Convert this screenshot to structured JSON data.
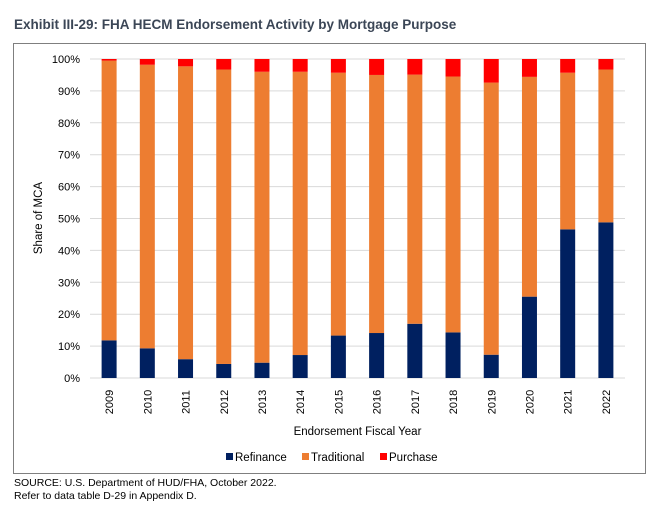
{
  "title": "Exhibit III-29: FHA HECM Endorsement Activity by Mortgage Purpose",
  "footer": {
    "source": "SOURCE: U.S. Department of HUD/FHA, October 2022.",
    "note": "Refer to data table D-29 in Appendix D."
  },
  "chart_data": {
    "type": "bar",
    "stacked": true,
    "xlabel": "Endorsement Fiscal Year",
    "ylabel": "Share of MCA",
    "ylim": [
      0,
      100
    ],
    "yticks": [
      "0%",
      "10%",
      "20%",
      "30%",
      "40%",
      "50%",
      "60%",
      "70%",
      "80%",
      "90%",
      "100%"
    ],
    "grid": true,
    "legend": "bottom",
    "categories": [
      "2009",
      "2010",
      "2011",
      "2012",
      "2013",
      "2014",
      "2015",
      "2016",
      "2017",
      "2018",
      "2019",
      "2020",
      "2021",
      "2022"
    ],
    "series": [
      {
        "name": "Refinance",
        "color": "#002060",
        "values": [
          11.8,
          9.3,
          5.9,
          4.4,
          4.8,
          7.2,
          13.3,
          14.1,
          17.0,
          14.3,
          7.3,
          25.5,
          46.6,
          48.8
        ]
      },
      {
        "name": "Traditional",
        "color": "#ed7d31",
        "values": [
          87.7,
          88.9,
          91.8,
          92.3,
          91.2,
          88.8,
          82.4,
          80.9,
          78.1,
          80.2,
          85.3,
          68.9,
          49.1,
          47.9
        ]
      },
      {
        "name": "Purchase",
        "color": "#ff0000",
        "values": [
          0.5,
          1.8,
          2.3,
          3.3,
          4.0,
          4.0,
          4.3,
          5.0,
          4.9,
          5.5,
          7.4,
          5.6,
          4.3,
          3.3
        ]
      }
    ]
  }
}
